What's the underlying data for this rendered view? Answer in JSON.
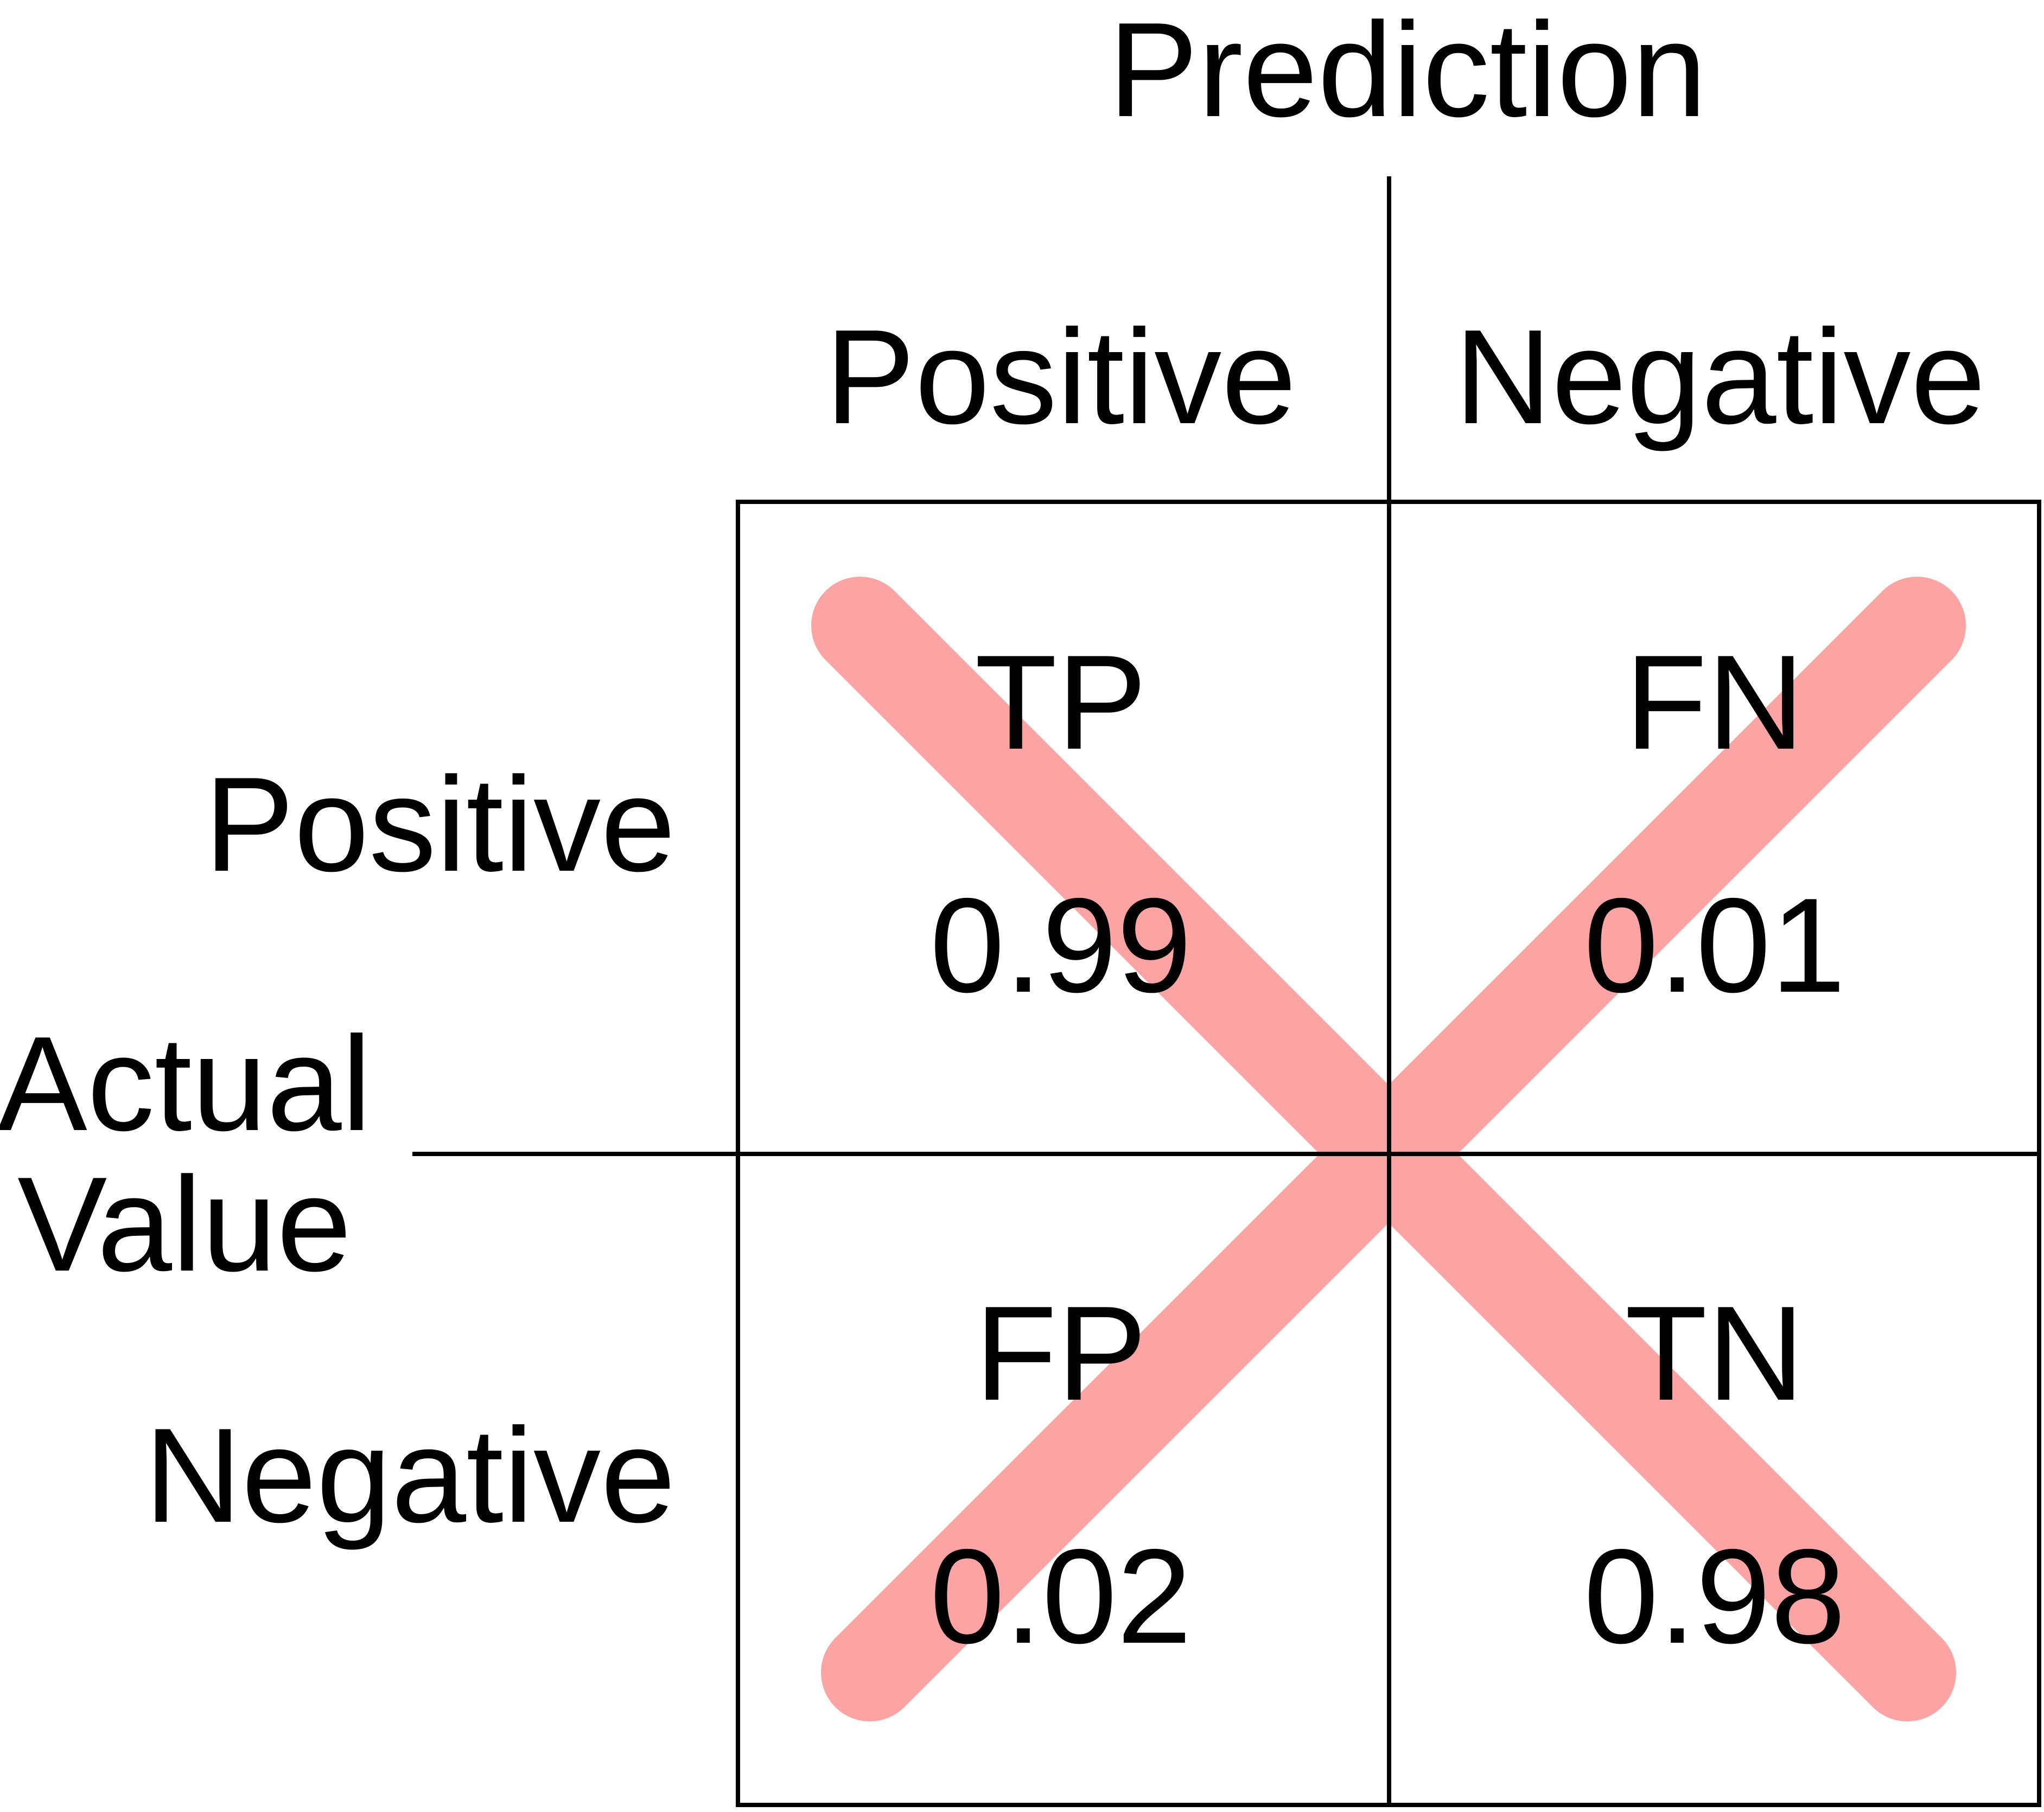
{
  "header": {
    "title": "Prediction"
  },
  "columns": [
    {
      "label": "Positive"
    },
    {
      "label": "Negative"
    }
  ],
  "axis": {
    "row_title_line1": "Actual",
    "row_title_line2": "Value"
  },
  "rows": [
    {
      "label": "Positive"
    },
    {
      "label": "Negative"
    }
  ],
  "cells": [
    {
      "abbr": "TP",
      "value": "0.99"
    },
    {
      "abbr": "FN",
      "value": "0.01"
    },
    {
      "abbr": "FP",
      "value": "0.02"
    },
    {
      "abbr": "TN",
      "value": "0.98"
    }
  ],
  "colors": {
    "cross": "#fca3a3",
    "line": "#000000"
  }
}
